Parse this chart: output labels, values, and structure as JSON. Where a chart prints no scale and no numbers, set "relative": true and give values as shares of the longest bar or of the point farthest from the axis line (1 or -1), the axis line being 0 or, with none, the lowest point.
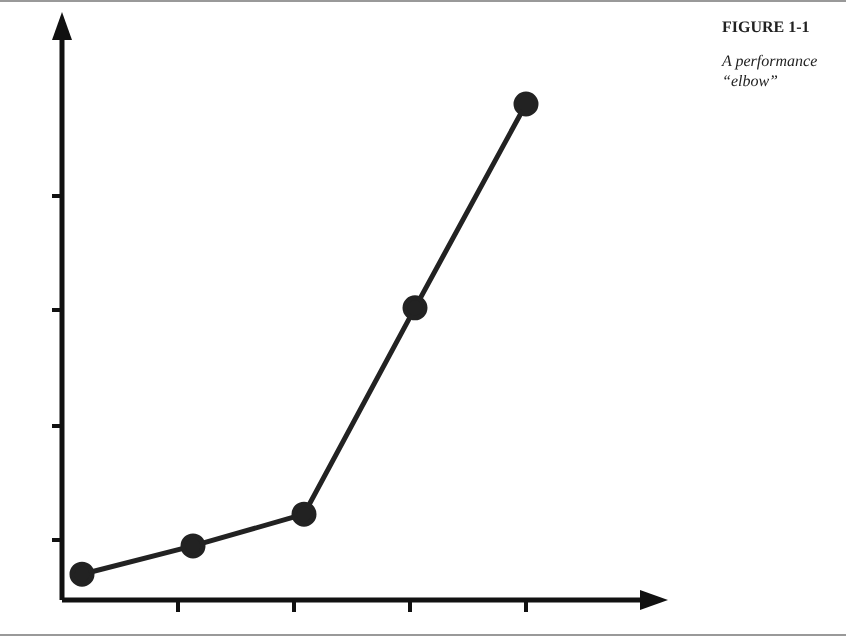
{
  "chart_data": {
    "type": "line",
    "title": "FIGURE 1-1",
    "subtitle": "A performance “elbow”",
    "relative": true,
    "categories": [
      null,
      null,
      null,
      null,
      null
    ],
    "series": [
      {
        "color": "#222222",
        "values": [
          0.052,
          0.109,
          0.173,
          0.589,
          1
        ]
      }
    ],
    "marker": "circle",
    "line_style": "solid",
    "grid": false,
    "legend": false
  }
}
